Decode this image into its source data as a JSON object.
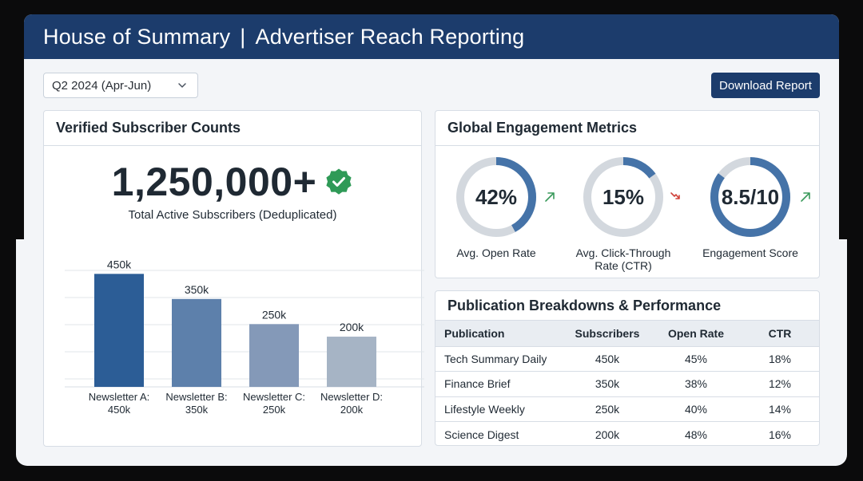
{
  "header": {
    "brand": "House of Summary",
    "separator": "|",
    "title": "Advertiser Reach Reporting"
  },
  "toolbar": {
    "period_selected": "Q2 2024 (Apr-Jun)",
    "download_label": "Download Report"
  },
  "subscribers_card": {
    "title": "Verified Subscriber Counts",
    "total": "1,250,000+",
    "total_caption": "Total Active Subscribers (Deduplicated)",
    "verified_icon": "check-badge-icon",
    "bar_color_scale": [
      "#2c5d96",
      "#5d80ab",
      "#8499b8",
      "#a6b4c5"
    ]
  },
  "chart_data": {
    "type": "bar",
    "categories": [
      "Newsletter A:",
      "Newsletter B:",
      "Newsletter C:",
      "Newsletter D:"
    ],
    "category_sublabels": [
      "450k",
      "350k",
      "250k",
      "200k"
    ],
    "values": [
      450,
      350,
      250,
      200
    ],
    "data_labels": [
      "450k",
      "350k",
      "250k",
      "200k"
    ],
    "ylim": [
      0,
      500
    ],
    "grid": true
  },
  "metrics_card": {
    "title": "Global Engagement Metrics",
    "metrics": [
      {
        "value": "42%",
        "label_line1": "Avg. Open Rate",
        "label_line2": "",
        "fraction": 0.42,
        "trend": "up",
        "trend_icon": "trend-up-icon"
      },
      {
        "value": "15%",
        "label_line1": "Avg. Click-Through",
        "label_line2": "Rate (CTR)",
        "fraction": 0.15,
        "trend": "down",
        "trend_icon": "trend-down-icon"
      },
      {
        "value": "8.5/10",
        "label_line1": "Engagement Score",
        "label_line2": "",
        "fraction": 0.85,
        "trend": "up",
        "trend_icon": "trend-up-icon"
      }
    ],
    "ring_color": "#4573a8",
    "track_color": "#d3d8de",
    "up_color": "#3a9a5b",
    "down_color": "#d0423a"
  },
  "table_card": {
    "title": "Publication Breakdowns & Performance",
    "columns": [
      "Publication",
      "Subscribers",
      "Open Rate",
      "CTR"
    ],
    "rows": [
      [
        "Tech Summary Daily",
        "450k",
        "45%",
        "18%"
      ],
      [
        "Finance Brief",
        "350k",
        "38%",
        "12%"
      ],
      [
        "Lifestyle Weekly",
        "250k",
        "40%",
        "14%"
      ],
      [
        "Science Digest",
        "200k",
        "48%",
        "16%"
      ]
    ]
  }
}
